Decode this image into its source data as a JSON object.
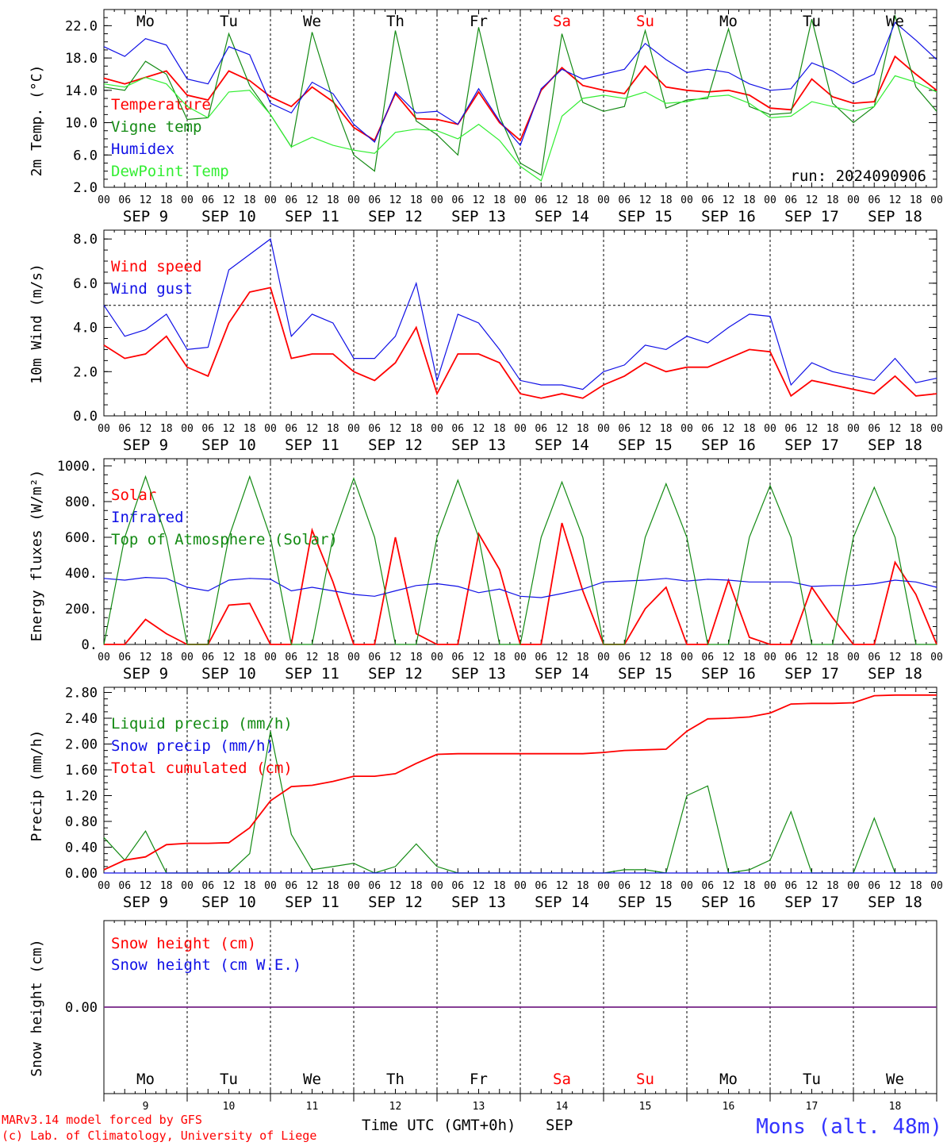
{
  "header": {
    "run_label": "run: 2024090906",
    "station": "Mons (alt. 48m)",
    "credit_line1": "MARv3.14 model forced by GFS",
    "credit_line2": "(c) Lab. of Climatology, University of Liege",
    "x_axis_title": "Time UTC (GMT+0h)",
    "month": "SEP"
  },
  "days": {
    "weekday_labels": [
      "Mo",
      "Tu",
      "We",
      "Th",
      "Fr",
      "Sa",
      "Su",
      "Mo",
      "Tu",
      "We"
    ],
    "weekend_flags": [
      false,
      false,
      false,
      false,
      false,
      true,
      true,
      false,
      false,
      false
    ],
    "date_labels": [
      "SEP  9",
      "SEP 10",
      "SEP 11",
      "SEP 12",
      "SEP 13",
      "SEP 14",
      "SEP 15",
      "SEP 16",
      "SEP 17",
      "SEP 18"
    ],
    "day_numbers": [
      "9",
      "10",
      "11",
      "12",
      "13",
      "14",
      "15",
      "16",
      "17",
      "18"
    ],
    "hour_ticks": [
      "00",
      "06",
      "12",
      "18"
    ],
    "final_tick": "00"
  },
  "colors": {
    "red": "#ff0000",
    "green": "#138a13",
    "blue": "#1010e6",
    "lightgreen": "#33ee33",
    "purple": "#7a2a8a",
    "axis": "#000000"
  },
  "chart_data": [
    {
      "type": "line",
      "title": "",
      "ylabel": "2m Temp. (°C)",
      "x": "hours since SEP 9 00 UTC, 0-240, 6-hourly",
      "ylim": [
        2,
        24
      ],
      "yticks": [
        "2.0",
        "6.0",
        "10.0",
        "14.0",
        "18.0",
        "22.0"
      ],
      "series": [
        {
          "name": "Temperature",
          "color": "red",
          "values": [
            15.5,
            14.8,
            15.6,
            16.4,
            13.4,
            12.8,
            16.4,
            15.2,
            13.2,
            12.0,
            14.4,
            12.6,
            9.4,
            7.8,
            13.6,
            10.5,
            10.4,
            9.8,
            13.8,
            10.0,
            7.8,
            14.0,
            16.8,
            14.6,
            14.0,
            13.6,
            17.0,
            14.4,
            14.0,
            13.8,
            14.0,
            13.4,
            11.8,
            11.6,
            15.4,
            13.2,
            12.4,
            12.6,
            18.2,
            16.0,
            14.0
          ]
        },
        {
          "name": "Vigne temp",
          "color": "green",
          "values": [
            14.4,
            14.0,
            17.6,
            16.0,
            10.4,
            10.6,
            21.0,
            14.6,
            11.0,
            7.0,
            21.2,
            12.8,
            6.0,
            4.0,
            21.4,
            10.2,
            8.5,
            6.0,
            21.8,
            10.8,
            5.0,
            3.5,
            21.0,
            12.5,
            11.4,
            12.0,
            21.4,
            11.8,
            12.8,
            13.0,
            21.6,
            12.0,
            11.0,
            11.2,
            22.8,
            12.4,
            10.0,
            12.0,
            23.2,
            14.4,
            11.4
          ]
        },
        {
          "name": "Humidex",
          "color": "blue",
          "values": [
            19.4,
            18.2,
            20.4,
            19.6,
            15.4,
            14.8,
            19.4,
            18.4,
            12.4,
            11.2,
            15.0,
            13.6,
            9.8,
            7.6,
            13.8,
            11.2,
            11.4,
            9.8,
            14.2,
            10.2,
            7.2,
            14.2,
            16.6,
            15.4,
            16.0,
            16.6,
            19.8,
            17.8,
            16.2,
            16.6,
            16.2,
            14.8,
            14.0,
            14.2,
            17.4,
            16.4,
            14.8,
            16.0,
            22.4,
            20.2,
            17.8
          ]
        },
        {
          "name": "DewPoint Temp",
          "color": "lightgreen",
          "values": [
            14.8,
            14.4,
            15.6,
            14.8,
            12.0,
            10.6,
            13.8,
            14.0,
            11.0,
            7.0,
            8.2,
            7.2,
            6.6,
            6.2,
            8.8,
            9.2,
            9.0,
            8.0,
            9.8,
            7.8,
            4.6,
            2.8,
            10.8,
            13.0,
            13.4,
            13.0,
            13.8,
            12.4,
            12.6,
            13.2,
            13.4,
            12.4,
            10.6,
            10.8,
            12.6,
            12.0,
            11.4,
            12.0,
            15.8,
            15.0,
            13.8
          ]
        }
      ]
    },
    {
      "type": "line",
      "title": "",
      "ylabel": "10m Wind (m/s)",
      "x": "hours since SEP 9 00 UTC, 0-240, 6-hourly",
      "ylim": [
        0,
        8
      ],
      "yticks": [
        "0.0",
        "2.0",
        "4.0",
        "6.0",
        "8.0"
      ],
      "reference_line": 5.0,
      "series": [
        {
          "name": "Wind speed",
          "color": "red",
          "values": [
            3.2,
            2.6,
            2.8,
            3.6,
            2.2,
            1.8,
            4.2,
            5.6,
            5.8,
            2.6,
            2.8,
            2.8,
            2.0,
            1.6,
            2.4,
            4.0,
            1.0,
            2.8,
            2.8,
            2.4,
            1.0,
            0.8,
            1.0,
            0.8,
            1.4,
            1.8,
            2.4,
            2.0,
            2.2,
            2.2,
            2.6,
            3.0,
            2.9,
            0.9,
            1.6,
            1.4,
            1.2,
            1.0,
            1.8,
            0.9,
            1.0
          ]
        },
        {
          "name": "Wind gust",
          "color": "blue",
          "values": [
            5.0,
            3.6,
            3.9,
            4.6,
            3.0,
            3.1,
            6.6,
            7.3,
            8.0,
            3.6,
            4.6,
            4.2,
            2.6,
            2.6,
            3.6,
            6.0,
            1.6,
            4.6,
            4.2,
            3.0,
            1.6,
            1.4,
            1.4,
            1.2,
            2.0,
            2.3,
            3.2,
            3.0,
            3.6,
            3.3,
            4.0,
            4.6,
            4.5,
            1.4,
            2.4,
            2.0,
            1.8,
            1.6,
            2.6,
            1.5,
            1.7
          ]
        }
      ]
    },
    {
      "type": "line",
      "title": "",
      "ylabel": "Energy fluxes (W/m²)",
      "x": "hours since SEP 9 00 UTC, 0-240, 6-hourly",
      "ylim": [
        0,
        1000
      ],
      "yticks": [
        "0.",
        "200.",
        "400.",
        "600.",
        "800.",
        "1000."
      ],
      "series": [
        {
          "name": "Solar",
          "color": "red",
          "values": [
            0,
            0,
            140,
            60,
            0,
            0,
            220,
            230,
            0,
            0,
            640,
            350,
            0,
            0,
            600,
            60,
            0,
            0,
            620,
            420,
            0,
            0,
            680,
            300,
            0,
            0,
            200,
            320,
            0,
            0,
            360,
            40,
            0,
            0,
            320,
            150,
            0,
            0,
            460,
            280,
            0
          ]
        },
        {
          "name": "Infrared",
          "color": "blue",
          "values": [
            370,
            360,
            375,
            370,
            320,
            300,
            360,
            370,
            365,
            300,
            320,
            300,
            280,
            270,
            300,
            330,
            340,
            325,
            290,
            310,
            270,
            262,
            285,
            310,
            350,
            355,
            360,
            370,
            355,
            365,
            360,
            350,
            350,
            350,
            325,
            330,
            330,
            340,
            360,
            350,
            320
          ]
        },
        {
          "name": "Top of Atmosphere (Solar)",
          "color": "green",
          "values": [
            0,
            600,
            940,
            600,
            0,
            0,
            600,
            940,
            600,
            0,
            0,
            600,
            930,
            600,
            0,
            0,
            600,
            920,
            600,
            0,
            0,
            600,
            910,
            600,
            0,
            0,
            600,
            900,
            600,
            0,
            0,
            600,
            890,
            600,
            0,
            0,
            600,
            880,
            600,
            0,
            0
          ]
        }
      ]
    },
    {
      "type": "line",
      "title": "",
      "ylabel": "Precip (mm/h)",
      "x": "hours since SEP 9 00 UTC, 0-240, 6-hourly",
      "ylim": [
        0,
        2.8
      ],
      "yticks": [
        "0.00",
        "0.40",
        "0.80",
        "1.20",
        "1.60",
        "2.00",
        "2.40",
        "2.80"
      ],
      "series": [
        {
          "name": "Liquid precip (mm/h)",
          "color": "green",
          "values": [
            0.55,
            0.2,
            0.65,
            0.0,
            0.0,
            0.0,
            0.0,
            0.3,
            2.2,
            0.6,
            0.05,
            0.1,
            0.15,
            0.0,
            0.1,
            0.45,
            0.1,
            0.0,
            0.0,
            0.0,
            0.0,
            0.0,
            0.0,
            0.0,
            0.0,
            0.05,
            0.05,
            0.0,
            1.2,
            1.35,
            0.0,
            0.05,
            0.2,
            0.95,
            0.0,
            0.0,
            0.0,
            0.85,
            0.0,
            0.0,
            0.0
          ]
        },
        {
          "name": "Snow precip (mm/h)",
          "color": "blue",
          "values": [
            0,
            0,
            0,
            0,
            0,
            0,
            0,
            0,
            0,
            0,
            0,
            0,
            0,
            0,
            0,
            0,
            0,
            0,
            0,
            0,
            0,
            0,
            0,
            0,
            0,
            0,
            0,
            0,
            0,
            0,
            0,
            0,
            0,
            0,
            0,
            0,
            0,
            0,
            0,
            0,
            0
          ]
        },
        {
          "name": "Total cumulated (cm)",
          "color": "red",
          "values": [
            0.05,
            0.2,
            0.25,
            0.44,
            0.46,
            0.46,
            0.47,
            0.7,
            1.12,
            1.34,
            1.36,
            1.42,
            1.5,
            1.5,
            1.54,
            1.7,
            1.84,
            1.85,
            1.85,
            1.85,
            1.85,
            1.85,
            1.85,
            1.85,
            1.87,
            1.9,
            1.91,
            1.92,
            2.2,
            2.39,
            2.4,
            2.42,
            2.48,
            2.62,
            2.63,
            2.63,
            2.64,
            2.75,
            2.76,
            2.76,
            2.76
          ]
        }
      ]
    },
    {
      "type": "line",
      "title": "",
      "ylabel": "Snow height (cm)",
      "x": "hours since SEP 9 00 UTC, 0-240, 6-hourly",
      "yticks": [
        "0.00"
      ],
      "series": [
        {
          "name": "Snow height (cm)",
          "color": "red",
          "values": [
            0,
            0,
            0,
            0,
            0,
            0,
            0,
            0,
            0,
            0,
            0,
            0,
            0,
            0,
            0,
            0,
            0,
            0,
            0,
            0,
            0,
            0,
            0,
            0,
            0,
            0,
            0,
            0,
            0,
            0,
            0,
            0,
            0,
            0,
            0,
            0,
            0,
            0,
            0,
            0,
            0
          ]
        },
        {
          "name": "Snow height (cm W.E.)",
          "color": "blue",
          "values": [
            0,
            0,
            0,
            0,
            0,
            0,
            0,
            0,
            0,
            0,
            0,
            0,
            0,
            0,
            0,
            0,
            0,
            0,
            0,
            0,
            0,
            0,
            0,
            0,
            0,
            0,
            0,
            0,
            0,
            0,
            0,
            0,
            0,
            0,
            0,
            0,
            0,
            0,
            0,
            0,
            0
          ]
        }
      ]
    }
  ]
}
